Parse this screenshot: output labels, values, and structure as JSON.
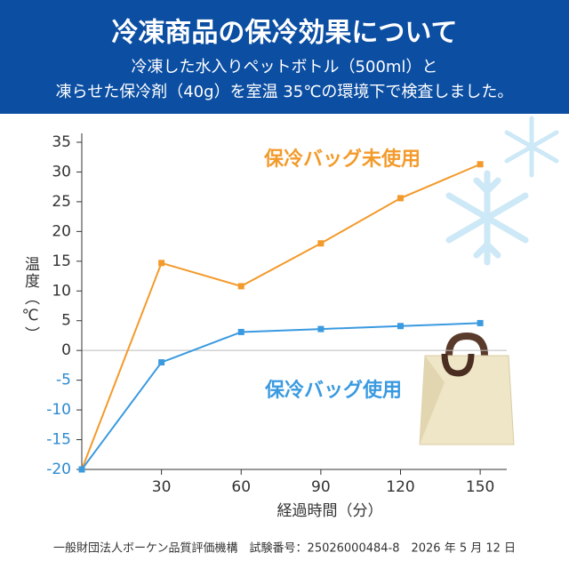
{
  "header": {
    "title": "冷凍商品の保冷効果について",
    "subtitle": [
      "冷凍した水入りペットボトル（500ml）と",
      "凍らせた保冷剤（40g）を室温 35℃の環境下で検査しました。"
    ]
  },
  "chart_data": {
    "type": "line",
    "x": [
      0,
      30,
      60,
      90,
      120,
      150
    ],
    "series": [
      {
        "name": "保冷バッグ未使用",
        "color": "#f39a2b",
        "values": [
          -20,
          14.7,
          10.8,
          18,
          25.6,
          31.3
        ]
      },
      {
        "name": "保冷バッグ使用",
        "color": "#3a9ae0",
        "values": [
          -20,
          -2,
          3.1,
          3.6,
          4.1,
          4.6
        ]
      }
    ],
    "xlim": [
      0,
      160
    ],
    "ylim": [
      -20,
      35
    ],
    "xticks": [
      30,
      60,
      90,
      120,
      150
    ],
    "yticks": [
      -20,
      -15,
      -10,
      -5,
      0,
      5,
      10,
      15,
      20,
      25,
      30,
      35
    ],
    "xlabel": "経過時間（分）",
    "ylabel": "温度（℃）",
    "negative_color": "#2a8ad0"
  },
  "footer": "一般財団法人ボーケン品質評価機構　試験番号：25026000484-8　2026 年 5 月 12 日"
}
